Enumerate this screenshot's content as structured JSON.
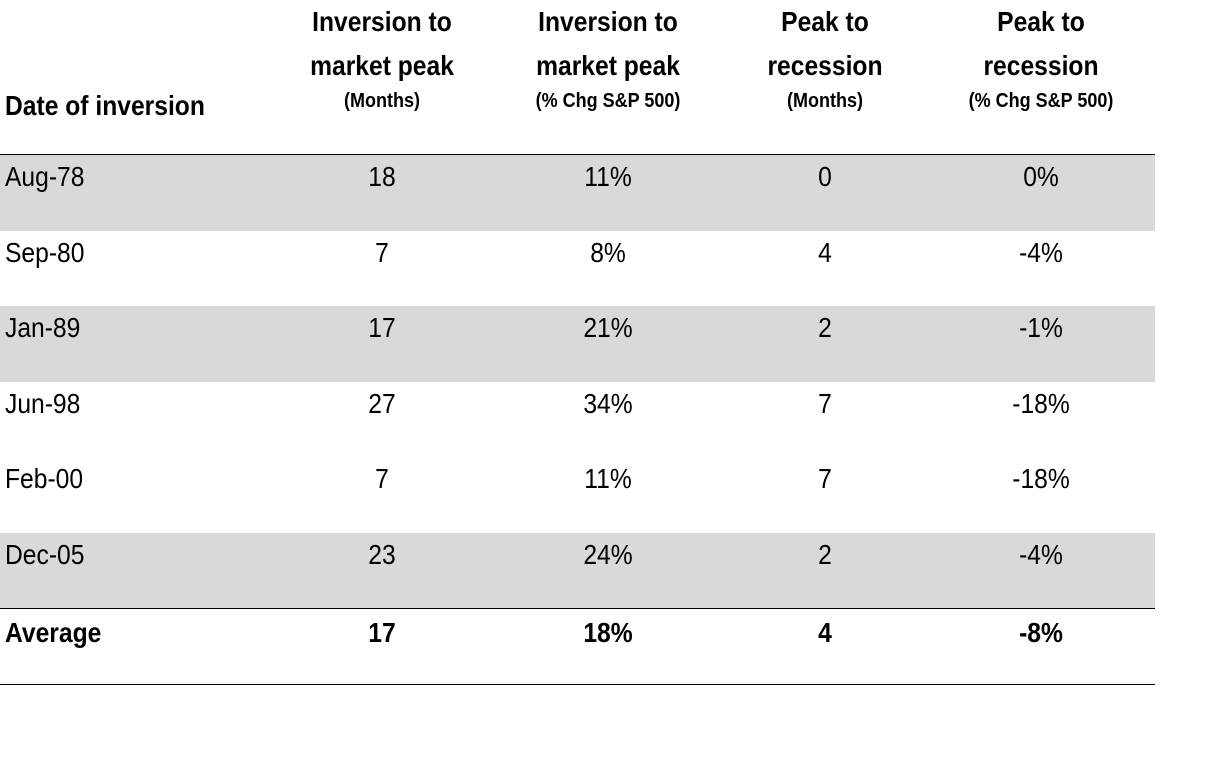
{
  "chart_data": {
    "type": "table",
    "columns": [
      {
        "line1": "Date of inversion",
        "line2": "",
        "unit": ""
      },
      {
        "line1": "Inversion to",
        "line2": "market peak",
        "unit": "(Months)"
      },
      {
        "line1": "Inversion to",
        "line2": "market peak",
        "unit": "(% Chg S&P 500)"
      },
      {
        "line1": "Peak to",
        "line2": "recession",
        "unit": "(Months)"
      },
      {
        "line1": "Peak to",
        "line2": "recession",
        "unit": "(% Chg S&P 500)"
      }
    ],
    "rows": [
      {
        "date": "Aug-78",
        "values": [
          "18",
          "11%",
          "0",
          "0%"
        ]
      },
      {
        "date": "Sep-80",
        "values": [
          "7",
          "8%",
          "4",
          "-4%"
        ]
      },
      {
        "date": "Jan-89",
        "values": [
          "17",
          "21%",
          "2",
          "-1%"
        ]
      },
      {
        "date": "Jun-98",
        "values": [
          "27",
          "34%",
          "7",
          "-18%"
        ]
      },
      {
        "date": "Feb-00",
        "values": [
          "7",
          "11%",
          "7",
          "-18%"
        ]
      },
      {
        "date": "Dec-05",
        "values": [
          "23",
          "24%",
          "2",
          "-4%"
        ]
      }
    ],
    "average": {
      "label": "Average",
      "values": [
        "17",
        "18%",
        "4",
        "-8%"
      ]
    },
    "colors": {
      "shaded_row": "#d9d9d9",
      "rule": "#000000"
    }
  }
}
